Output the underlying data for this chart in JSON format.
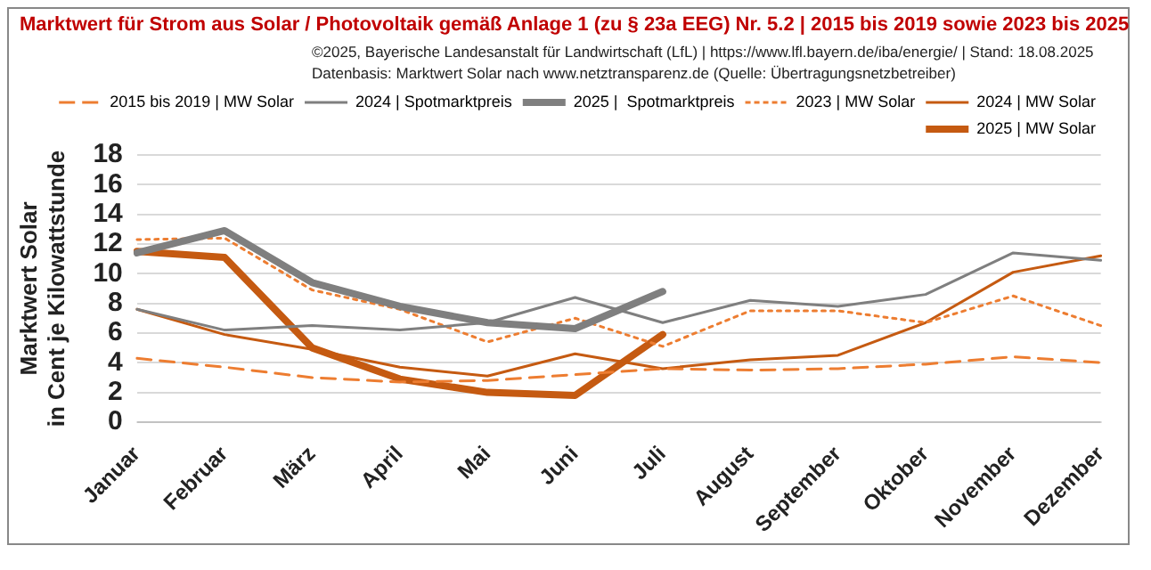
{
  "chart_data": {
    "type": "line",
    "title": "Marktwert für Strom aus Solar / Photovoltaik gemäß Anlage 1 (zu § 23a EEG) Nr. 5.2 | 2015 bis 2019 sowie 2023 bis 2025",
    "annotations": [
      "©2025, Bayerische Landesanstalt für Landwirtschaft (LfL)  |  https://www.lfl.bayern.de/iba/energie/  |  Stand: 18.08.2025",
      "Datenbasis: Marktwert Solar nach www.netztransparenz.de (Quelle: Übertragungsnetzbetreiber)"
    ],
    "ylabel": "Marktwert Solar\nin Cent je Kilowattstunde",
    "categories": [
      "Januar",
      "Februar",
      "März",
      "April",
      "Mai",
      "Juni",
      "Juli",
      "August",
      "September",
      "Oktober",
      "November",
      "Dezember"
    ],
    "series": [
      {
        "name": "2015 bis 2019 | MW Solar",
        "color": "#ed7d31",
        "line_style": "dashed",
        "values": [
          4.3,
          3.7,
          3.0,
          2.7,
          2.8,
          3.2,
          3.6,
          3.5,
          3.6,
          3.9,
          4.4,
          4.0
        ]
      },
      {
        "name": "2024 | Spotmarktpreis",
        "color": "#7f7f7f",
        "values": [
          7.6,
          6.2,
          6.5,
          6.2,
          6.7,
          8.4,
          6.7,
          8.2,
          7.8,
          8.6,
          11.4,
          10.9
        ]
      },
      {
        "name": "2025 |  Spotmarktpreis",
        "color": "#7f7f7f",
        "values": [
          11.4,
          12.9,
          9.4,
          7.8,
          6.7,
          6.3,
          8.8,
          null,
          null,
          null,
          null,
          null
        ]
      },
      {
        "name": "2023 | MW Solar",
        "color": "#ed7d31",
        "line_style": "dotted",
        "values": [
          12.3,
          12.4,
          8.9,
          7.6,
          5.4,
          7.0,
          5.1,
          7.5,
          7.5,
          6.7,
          8.5,
          6.5
        ]
      },
      {
        "name": "2024 | MW Solar",
        "color": "#c55a11",
        "values": [
          7.6,
          5.9,
          4.9,
          3.7,
          3.1,
          4.6,
          3.6,
          4.2,
          4.5,
          6.7,
          10.1,
          11.2
        ]
      },
      {
        "name": "2025 | MW Solar",
        "color": "#c55a11",
        "values": [
          11.5,
          11.1,
          5.0,
          2.9,
          2.0,
          1.8,
          5.9,
          null,
          null,
          null,
          null,
          null
        ]
      }
    ],
    "ylim": [
      0,
      18
    ],
    "yticks": [
      0,
      2,
      4,
      6,
      8,
      10,
      12,
      14,
      16,
      18
    ],
    "grid": "y",
    "legend": "top right",
    "marker": "none"
  }
}
